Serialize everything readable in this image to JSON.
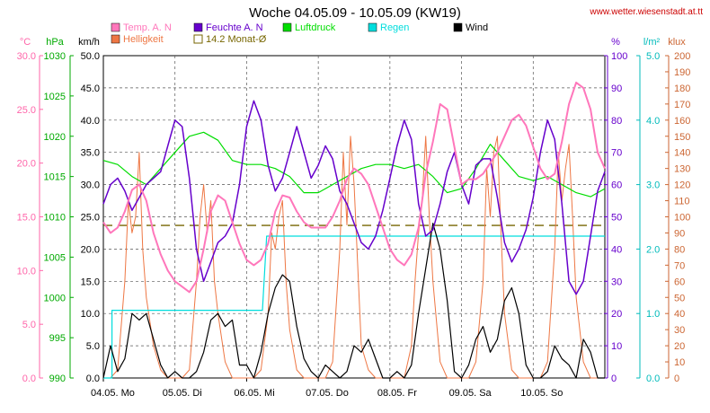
{
  "header": {
    "title": "Woche 04.05.09 - 10.05.09 (KW19)",
    "site": "www.wetter.wiesenstadt.at.tt"
  },
  "chart_data": {
    "type": "line",
    "title": "Woche 04.05.09 - 10.05.09 (KW19)",
    "grid": true,
    "x_ticks": [
      "04.05.  Mo",
      "05.05.  Di",
      "06.05.  Mi",
      "07.05.  Do",
      "08.05.  Fr",
      "09.05.  Sa",
      "10.05.  So"
    ],
    "x_range_days": [
      0,
      7
    ],
    "axes": [
      {
        "key": "temp",
        "unit": "°C",
        "side": "left",
        "range": [
          0,
          30
        ],
        "ticks": [
          "0.0",
          "5.0",
          "10.0",
          "15.0",
          "20.0",
          "25.0",
          "30.0"
        ],
        "color": "#ff66aa"
      },
      {
        "key": "pressure",
        "unit": "hPa",
        "side": "left",
        "range": [
          990,
          1030
        ],
        "ticks": [
          "990",
          "995",
          "1000",
          "1005",
          "1010",
          "1015",
          "1020",
          "1025",
          "1030"
        ],
        "color": "#00aa00"
      },
      {
        "key": "wind",
        "unit": "km/h",
        "side": "left",
        "range": [
          0,
          50
        ],
        "ticks": [
          "0.0",
          "5.0",
          "10.0",
          "15.0",
          "20.0",
          "25.0",
          "30.0",
          "35.0",
          "40.0",
          "45.0",
          "50.0"
        ],
        "color": "#000000"
      },
      {
        "key": "humidity",
        "unit": "%",
        "side": "right",
        "range": [
          0,
          100
        ],
        "ticks": [
          "0",
          "10",
          "20",
          "30",
          "40",
          "50",
          "60",
          "70",
          "80",
          "90",
          "100"
        ],
        "color": "#6600cc"
      },
      {
        "key": "rain",
        "unit": "l/m²",
        "side": "right",
        "range": [
          0,
          5
        ],
        "ticks": [
          "0.0",
          "1.0",
          "2.0",
          "3.0",
          "4.0",
          "5.0"
        ],
        "color": "#00bbbb"
      },
      {
        "key": "light",
        "unit": "klux",
        "side": "right",
        "range": [
          0,
          200
        ],
        "ticks": [
          "0",
          "10",
          "20",
          "30",
          "40",
          "50",
          "60",
          "70",
          "80",
          "90",
          "100",
          "110",
          "120",
          "130",
          "140",
          "150",
          "160",
          "170",
          "180",
          "190",
          "200"
        ],
        "color": "#cc6633"
      }
    ],
    "legend": [
      {
        "label": "Temp. A. N",
        "color": "#ff77bb",
        "style": "box"
      },
      {
        "label": "Feuchte A. N",
        "color": "#6600cc",
        "style": "box"
      },
      {
        "label": "Luftdruck",
        "color": "#00dd00",
        "style": "box"
      },
      {
        "label": "Regen",
        "color": "#00dddd",
        "style": "box"
      },
      {
        "label": "Wind",
        "color": "#000000",
        "style": "box"
      },
      {
        "label": "Helligkeit",
        "color": "#ee7744",
        "style": "box"
      },
      {
        "label": "14.2 Monat-Ø",
        "color": "#776600",
        "style": "outline"
      }
    ],
    "monthly_mean_temp": 14.2,
    "series": [
      {
        "key": "temp",
        "name": "Temp. A. N",
        "axis": "temp",
        "color": "#ff77bb",
        "width": 2,
        "x": [
          0,
          0.1,
          0.2,
          0.3,
          0.4,
          0.5,
          0.6,
          0.7,
          0.8,
          0.9,
          1.0,
          1.1,
          1.2,
          1.3,
          1.4,
          1.5,
          1.6,
          1.7,
          1.8,
          1.9,
          2.0,
          2.1,
          2.2,
          2.3,
          2.4,
          2.5,
          2.6,
          2.7,
          2.8,
          2.9,
          3.0,
          3.1,
          3.2,
          3.3,
          3.4,
          3.5,
          3.6,
          3.7,
          3.8,
          3.9,
          4.0,
          4.1,
          4.2,
          4.3,
          4.4,
          4.5,
          4.6,
          4.7,
          4.8,
          4.9,
          5.0,
          5.1,
          5.2,
          5.3,
          5.4,
          5.5,
          5.6,
          5.7,
          5.8,
          5.9,
          6.0,
          6.1,
          6.2,
          6.3,
          6.4,
          6.5,
          6.6,
          6.7,
          6.8,
          6.9,
          7.0
        ],
        "y": [
          14.5,
          13.5,
          14,
          15.5,
          17.5,
          18,
          16.5,
          13.5,
          11.5,
          10,
          9,
          8.5,
          8,
          9,
          12,
          15.5,
          17,
          16.5,
          14.5,
          12.5,
          11,
          10.5,
          11,
          12.5,
          15.5,
          17,
          16.8,
          15.5,
          14.5,
          14,
          14,
          14,
          15,
          16.5,
          18.5,
          19.5,
          19,
          18,
          16,
          14,
          12,
          11,
          10.5,
          11.5,
          14,
          19,
          22,
          25.5,
          25,
          21.5,
          18,
          18.5,
          18.5,
          19,
          20,
          21,
          22.5,
          24,
          24.5,
          23.5,
          21.5,
          19.5,
          18.5,
          19,
          22,
          25.5,
          27.5,
          27,
          25,
          21,
          19.5
        ]
      },
      {
        "key": "humidity",
        "name": "Feuchte A. N",
        "axis": "humidity",
        "color": "#6600cc",
        "width": 1.5,
        "x": [
          0,
          0.1,
          0.2,
          0.3,
          0.4,
          0.5,
          0.6,
          0.7,
          0.8,
          0.9,
          1.0,
          1.1,
          1.2,
          1.3,
          1.4,
          1.5,
          1.6,
          1.7,
          1.8,
          1.9,
          2.0,
          2.1,
          2.2,
          2.3,
          2.4,
          2.5,
          2.6,
          2.7,
          2.8,
          2.9,
          3.0,
          3.1,
          3.2,
          3.3,
          3.4,
          3.5,
          3.6,
          3.7,
          3.8,
          3.9,
          4.0,
          4.1,
          4.2,
          4.3,
          4.4,
          4.5,
          4.6,
          4.7,
          4.8,
          4.9,
          5.0,
          5.1,
          5.2,
          5.3,
          5.4,
          5.5,
          5.6,
          5.7,
          5.8,
          5.9,
          6.0,
          6.1,
          6.2,
          6.3,
          6.4,
          6.5,
          6.6,
          6.7,
          6.8,
          6.9,
          7.0
        ],
        "y": [
          54,
          60,
          62,
          58,
          52,
          56,
          60,
          62,
          64,
          72,
          80,
          78,
          62,
          40,
          30,
          36,
          42,
          44,
          48,
          60,
          78,
          86,
          80,
          66,
          58,
          62,
          70,
          78,
          70,
          62,
          66,
          72,
          68,
          58,
          54,
          48,
          42,
          40,
          44,
          52,
          62,
          72,
          80,
          74,
          54,
          44,
          46,
          54,
          64,
          70,
          60,
          54,
          66,
          68,
          68,
          56,
          42,
          36,
          40,
          46,
          56,
          70,
          80,
          74,
          54,
          30,
          26,
          30,
          44,
          58,
          64
        ]
      },
      {
        "key": "pressure",
        "name": "Luftdruck",
        "axis": "pressure",
        "color": "#00dd00",
        "width": 1.2,
        "x": [
          0,
          0.2,
          0.4,
          0.6,
          0.8,
          1.0,
          1.2,
          1.4,
          1.6,
          1.8,
          2.0,
          2.2,
          2.4,
          2.6,
          2.8,
          3.0,
          3.2,
          3.4,
          3.6,
          3.8,
          4.0,
          4.2,
          4.4,
          4.6,
          4.8,
          5.0,
          5.2,
          5.4,
          5.6,
          5.8,
          6.0,
          6.2,
          6.4,
          6.6,
          6.8,
          7.0
        ],
        "y": [
          1017,
          1016.5,
          1015,
          1014,
          1016,
          1018,
          1020,
          1020.5,
          1019.5,
          1017,
          1016.5,
          1016.5,
          1016,
          1015,
          1013,
          1013,
          1014,
          1015,
          1016,
          1016.5,
          1016.5,
          1016,
          1016.5,
          1015,
          1013,
          1013.5,
          1016,
          1019,
          1017,
          1015,
          1014.5,
          1015,
          1014,
          1013,
          1012.5,
          1013.5
        ]
      },
      {
        "key": "rain",
        "name": "Regen",
        "axis": "rain",
        "color": "#00dddd",
        "width": 1.2,
        "step": true,
        "x": [
          0,
          0.12,
          0.12,
          0.15,
          0.15,
          2.22,
          2.22,
          2.28,
          2.28,
          7.0
        ],
        "y": [
          0,
          0,
          1.05,
          1.05,
          1.05,
          1.05,
          1.05,
          2.2,
          2.2,
          2.2
        ]
      },
      {
        "key": "wind",
        "name": "Wind",
        "axis": "wind",
        "color": "#000000",
        "width": 1.2,
        "x": [
          0,
          0.1,
          0.2,
          0.3,
          0.4,
          0.5,
          0.6,
          0.7,
          0.8,
          0.9,
          1.0,
          1.1,
          1.2,
          1.3,
          1.4,
          1.5,
          1.6,
          1.7,
          1.8,
          1.9,
          2.0,
          2.1,
          2.2,
          2.3,
          2.4,
          2.5,
          2.6,
          2.7,
          2.8,
          2.9,
          3.0,
          3.1,
          3.2,
          3.3,
          3.4,
          3.5,
          3.6,
          3.7,
          3.8,
          3.9,
          4.0,
          4.1,
          4.2,
          4.3,
          4.4,
          4.5,
          4.6,
          4.7,
          4.8,
          4.9,
          5.0,
          5.1,
          5.2,
          5.3,
          5.4,
          5.5,
          5.6,
          5.7,
          5.8,
          5.9,
          6.0,
          6.1,
          6.2,
          6.3,
          6.4,
          6.5,
          6.6,
          6.7,
          6.8,
          6.9,
          7.0
        ],
        "y": [
          0,
          5,
          1,
          3,
          10,
          9,
          10,
          6,
          2,
          0,
          1,
          0,
          0,
          1,
          4,
          9,
          10,
          8,
          9,
          2,
          2,
          0,
          4,
          10,
          14,
          16,
          15,
          8,
          3,
          1,
          0,
          2,
          1,
          0,
          1,
          5,
          4,
          6,
          3,
          0,
          0,
          1,
          0,
          2,
          10,
          17,
          24,
          20,
          12,
          1,
          0,
          2,
          6,
          8,
          4,
          6,
          12,
          14,
          10,
          2,
          0,
          0,
          1,
          5,
          3,
          2,
          0,
          6,
          4,
          0,
          0
        ]
      },
      {
        "key": "light",
        "name": "Helligkeit",
        "axis": "light",
        "color": "#ee7744",
        "width": 1.0,
        "x": [
          0,
          0.1,
          0.2,
          0.3,
          0.35,
          0.4,
          0.45,
          0.5,
          0.55,
          0.6,
          0.7,
          0.8,
          0.9,
          1.0,
          1.1,
          1.2,
          1.3,
          1.35,
          1.4,
          1.45,
          1.5,
          1.55,
          1.6,
          1.7,
          1.8,
          1.9,
          2.0,
          2.1,
          2.2,
          2.3,
          2.35,
          2.4,
          2.45,
          2.5,
          2.55,
          2.6,
          2.7,
          2.8,
          2.9,
          3.0,
          3.1,
          3.2,
          3.3,
          3.35,
          3.4,
          3.45,
          3.5,
          3.55,
          3.6,
          3.7,
          3.8,
          3.9,
          4.0,
          4.1,
          4.2,
          4.3,
          4.35,
          4.4,
          4.45,
          4.5,
          4.55,
          4.6,
          4.7,
          4.8,
          4.9,
          5.0,
          5.1,
          5.2,
          5.3,
          5.35,
          5.4,
          5.45,
          5.5,
          5.55,
          5.6,
          5.7,
          5.8,
          5.9,
          6.0,
          6.1,
          6.2,
          6.3,
          6.35,
          6.4,
          6.45,
          6.5,
          6.55,
          6.6,
          6.7,
          6.8,
          6.9,
          7.0
        ],
        "y": [
          0,
          0,
          5,
          60,
          110,
          90,
          100,
          140,
          80,
          50,
          20,
          5,
          0,
          0,
          0,
          5,
          60,
          100,
          120,
          90,
          110,
          60,
          40,
          10,
          0,
          0,
          0,
          0,
          5,
          40,
          90,
          80,
          100,
          110,
          60,
          30,
          5,
          0,
          0,
          0,
          0,
          10,
          80,
          140,
          95,
          150,
          120,
          70,
          20,
          5,
          0,
          0,
          0,
          0,
          0,
          20,
          60,
          90,
          110,
          150,
          100,
          60,
          10,
          0,
          0,
          0,
          0,
          10,
          60,
          130,
          100,
          140,
          150,
          90,
          40,
          5,
          0,
          0,
          0,
          0,
          10,
          80,
          140,
          110,
          130,
          145,
          100,
          50,
          10,
          0,
          0,
          0
        ]
      }
    ]
  }
}
